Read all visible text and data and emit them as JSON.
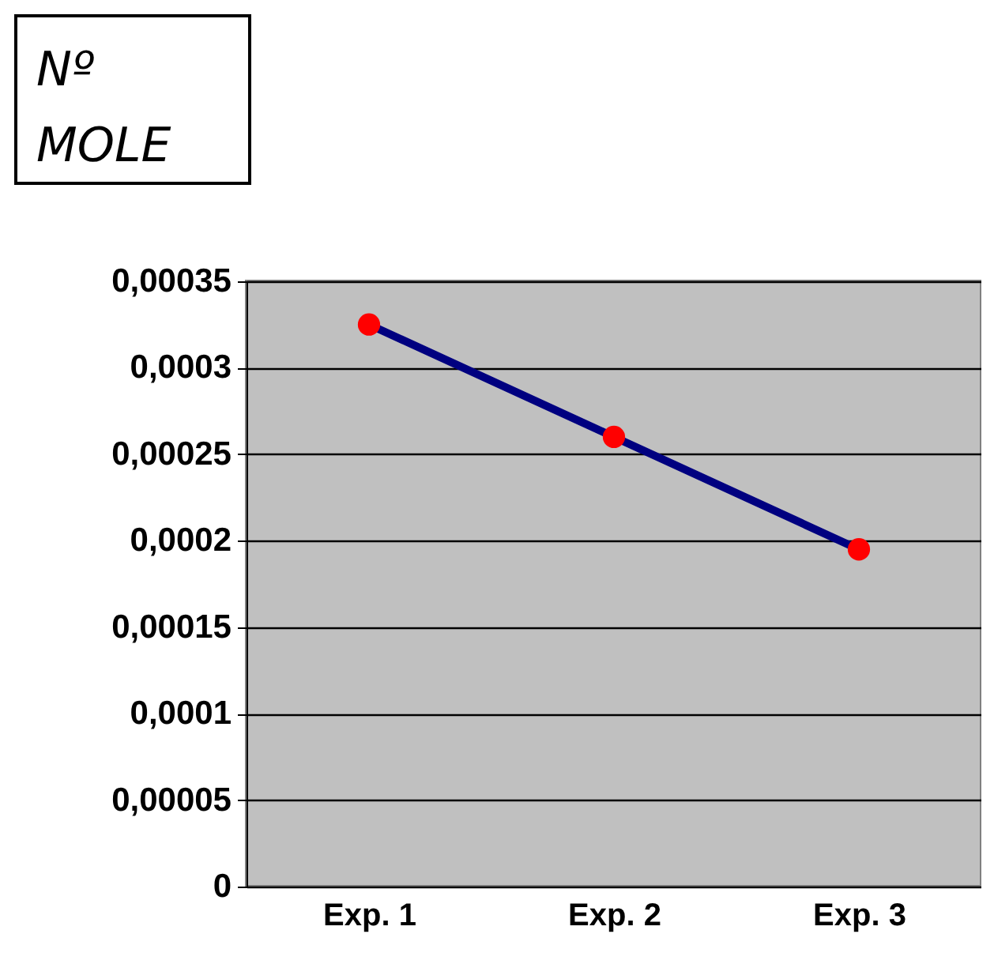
{
  "chart_data": {
    "type": "line",
    "title": "Nº MOLE",
    "categories": [
      "Exp. 1",
      "Exp. 2",
      "Exp. 3"
    ],
    "series": [
      {
        "color": "#000080",
        "colors": [
          "#ff0000",
          "#ff0000",
          "#ff0000"
        ],
        "values": [
          0.000325,
          0.00026,
          0.000195
        ]
      }
    ],
    "marker": "circle",
    "line_style": "solid",
    "ylim": [
      0,
      0.00035
    ],
    "yticks": [
      {
        "value": 0,
        "label": "0"
      },
      {
        "value": 5e-05,
        "label": "0,00005"
      },
      {
        "value": 0.0001,
        "label": "0,0001"
      },
      {
        "value": 0.00015,
        "label": "0,00015"
      },
      {
        "value": 0.0002,
        "label": "0,0002"
      },
      {
        "value": 0.00025,
        "label": "0,00025"
      },
      {
        "value": 0.0003,
        "label": "0,0003"
      },
      {
        "value": 0.00035,
        "label": "0,00035"
      }
    ],
    "grid": "y"
  }
}
